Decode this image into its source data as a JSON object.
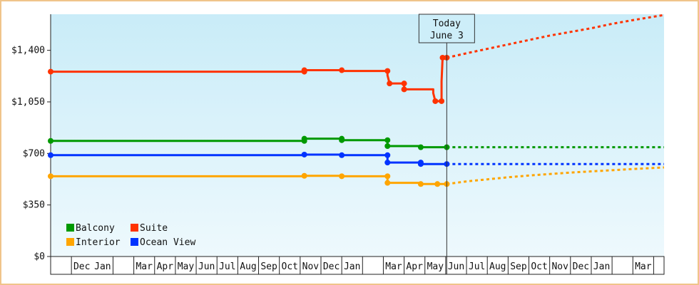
{
  "chart_data": {
    "type": "line",
    "title": "",
    "xlabel": "",
    "ylabel": "",
    "ylim": [
      0,
      1645
    ],
    "y_ticks": [
      {
        "value": 0,
        "label": "$0"
      },
      {
        "value": 350,
        "label": "$350"
      },
      {
        "value": 700,
        "label": "$700"
      },
      {
        "value": 1050,
        "label": "$1,050"
      },
      {
        "value": 1400,
        "label": "$1,400"
      }
    ],
    "x_range": [
      -1.0,
      28.5
    ],
    "month_labels": [
      {
        "label": "Dec",
        "pos": 0.5
      },
      {
        "label": "Jan",
        "pos": 1.5
      },
      {
        "label": "Mar",
        "pos": 3.5
      },
      {
        "label": "Apr",
        "pos": 4.5
      },
      {
        "label": "May",
        "pos": 5.5
      },
      {
        "label": "Jun",
        "pos": 6.5
      },
      {
        "label": "Jul",
        "pos": 7.5
      },
      {
        "label": "Aug",
        "pos": 8.5
      },
      {
        "label": "Sep",
        "pos": 9.5
      },
      {
        "label": "Oct",
        "pos": 10.5
      },
      {
        "label": "Nov",
        "pos": 11.5
      },
      {
        "label": "Dec",
        "pos": 12.5
      },
      {
        "label": "Jan",
        "pos": 13.5
      },
      {
        "label": "Mar",
        "pos": 15.5
      },
      {
        "label": "Apr",
        "pos": 16.5
      },
      {
        "label": "May",
        "pos": 17.5
      },
      {
        "label": "Jun",
        "pos": 18.5
      },
      {
        "label": "Jul",
        "pos": 19.5
      },
      {
        "label": "Aug",
        "pos": 20.5
      },
      {
        "label": "Sep",
        "pos": 21.5
      },
      {
        "label": "Oct",
        "pos": 22.5
      },
      {
        "label": "Nov",
        "pos": 23.5
      },
      {
        "label": "Dec",
        "pos": 24.5
      },
      {
        "label": "Jan",
        "pos": 25.5
      },
      {
        "label": "Mar",
        "pos": 27.5
      }
    ],
    "month_dividers": [
      0,
      2,
      3,
      4,
      5,
      6,
      7,
      8,
      9,
      10,
      11,
      12,
      13,
      14,
      15,
      16,
      17,
      18,
      19,
      20,
      21,
      22,
      23,
      24,
      25,
      26,
      27,
      28
    ],
    "today": {
      "line1": "Today",
      "line2": "June 3",
      "x": 18.05
    },
    "legend": {
      "placement": "bottom-left",
      "items": [
        {
          "name": "Balcony",
          "color": "#009900"
        },
        {
          "name": "Suite",
          "color": "#ff3300"
        },
        {
          "name": "Interior",
          "color": "#ffa500"
        },
        {
          "name": "Ocean View",
          "color": "#0033ff"
        }
      ]
    },
    "series": [
      {
        "name": "Suite",
        "color": "#ff3300",
        "steps": [
          [
            -1.0,
            1255
          ],
          [
            11.2,
            1255
          ],
          [
            11.2,
            1265
          ],
          [
            13.0,
            1265
          ],
          [
            13.0,
            1260
          ],
          [
            15.2,
            1260
          ],
          [
            15.2,
            1230
          ],
          [
            15.3,
            1175
          ],
          [
            16.0,
            1175
          ],
          [
            16.0,
            1135
          ],
          [
            17.4,
            1135
          ],
          [
            17.4,
            1110
          ],
          [
            17.5,
            1055
          ],
          [
            17.8,
            1055
          ],
          [
            17.8,
            1190
          ],
          [
            17.85,
            1350
          ],
          [
            18.05,
            1350
          ]
        ],
        "markers": [
          [
            -1.0,
            1255
          ],
          [
            11.2,
            1255
          ],
          [
            11.2,
            1265
          ],
          [
            13.0,
            1265
          ],
          [
            15.2,
            1260
          ],
          [
            15.3,
            1175
          ],
          [
            16.0,
            1175
          ],
          [
            16.0,
            1135
          ],
          [
            17.5,
            1055
          ],
          [
            17.8,
            1055
          ],
          [
            17.85,
            1350
          ],
          [
            18.05,
            1350
          ]
        ],
        "forecast": [
          [
            18.05,
            1350
          ],
          [
            19,
            1380
          ],
          [
            20,
            1410
          ],
          [
            21,
            1440
          ],
          [
            22,
            1470
          ],
          [
            23,
            1500
          ],
          [
            24,
            1525
          ],
          [
            25,
            1550
          ],
          [
            26,
            1580
          ],
          [
            27,
            1605
          ],
          [
            28.5,
            1640
          ]
        ]
      },
      {
        "name": "Balcony",
        "color": "#009900",
        "steps": [
          [
            -1.0,
            785
          ],
          [
            11.2,
            785
          ],
          [
            11.2,
            800
          ],
          [
            13.0,
            800
          ],
          [
            13.0,
            790
          ],
          [
            15.2,
            790
          ],
          [
            15.2,
            750
          ],
          [
            16.8,
            750
          ],
          [
            16.8,
            742
          ],
          [
            18.05,
            742
          ]
        ],
        "markers": [
          [
            -1.0,
            785
          ],
          [
            11.2,
            785
          ],
          [
            11.2,
            800
          ],
          [
            13.0,
            800
          ],
          [
            13.0,
            790
          ],
          [
            15.2,
            790
          ],
          [
            15.2,
            750
          ],
          [
            16.8,
            742
          ],
          [
            18.05,
            742
          ]
        ],
        "forecast": [
          [
            18.05,
            742
          ],
          [
            28.5,
            742
          ]
        ]
      },
      {
        "name": "Ocean View",
        "color": "#0033ff",
        "steps": [
          [
            -1.0,
            688
          ],
          [
            11.2,
            688
          ],
          [
            11.2,
            692
          ],
          [
            13.0,
            692
          ],
          [
            13.0,
            688
          ],
          [
            15.2,
            688
          ],
          [
            15.2,
            638
          ],
          [
            16.8,
            638
          ],
          [
            16.8,
            628
          ],
          [
            18.05,
            628
          ]
        ],
        "markers": [
          [
            -1.0,
            688
          ],
          [
            11.2,
            692
          ],
          [
            13.0,
            688
          ],
          [
            15.2,
            688
          ],
          [
            15.2,
            638
          ],
          [
            16.8,
            638
          ],
          [
            16.8,
            628
          ],
          [
            18.05,
            628
          ]
        ],
        "forecast": [
          [
            18.05,
            628
          ],
          [
            28.5,
            628
          ]
        ]
      },
      {
        "name": "Interior",
        "color": "#ffa500",
        "steps": [
          [
            -1.0,
            545
          ],
          [
            11.2,
            545
          ],
          [
            11.2,
            548
          ],
          [
            13.0,
            548
          ],
          [
            13.0,
            545
          ],
          [
            15.2,
            545
          ],
          [
            15.2,
            500
          ],
          [
            16.8,
            500
          ],
          [
            16.8,
            492
          ],
          [
            18.05,
            492
          ]
        ],
        "markers": [
          [
            -1.0,
            545
          ],
          [
            11.2,
            548
          ],
          [
            13.0,
            545
          ],
          [
            15.2,
            545
          ],
          [
            15.2,
            500
          ],
          [
            16.8,
            492
          ],
          [
            17.6,
            492
          ],
          [
            18.05,
            492
          ]
        ],
        "forecast": [
          [
            18.05,
            492
          ],
          [
            19,
            510
          ],
          [
            20,
            524
          ],
          [
            21,
            538
          ],
          [
            22,
            550
          ],
          [
            23,
            560
          ],
          [
            24,
            570
          ],
          [
            25,
            578
          ],
          [
            26,
            586
          ],
          [
            27,
            594
          ],
          [
            28.5,
            605
          ]
        ]
      }
    ]
  }
}
